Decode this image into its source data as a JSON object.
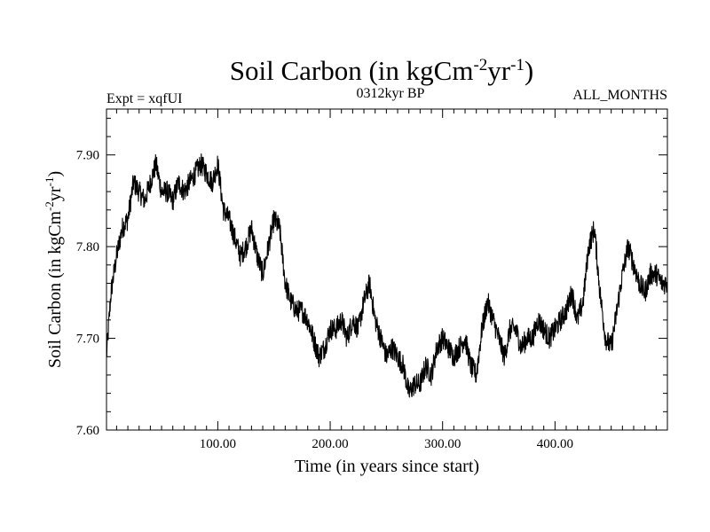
{
  "chart_data": {
    "type": "line",
    "title": "Soil Carbon (in kgCm",
    "title_sup1": "-2",
    "title_mid": "yr",
    "title_sup2": "-1",
    "title_end": ")",
    "expt_label": "Expt = xqfUI",
    "period_label": "0312kyr BP",
    "months_label": "ALL_MONTHS",
    "xlabel": "Time (in years since start)",
    "ylabel": "Soil Carbon (in kgCm",
    "ylabel_sup1": "-2",
    "ylabel_mid": "yr",
    "ylabel_sup2": "-1",
    "ylabel_end": ")",
    "xlim": [
      1,
      500
    ],
    "ylim": [
      7.6,
      7.95
    ],
    "xticks": [
      100,
      200,
      300,
      400
    ],
    "xtick_labels": [
      "100.00",
      "200.00",
      "300.00",
      "400.00"
    ],
    "yticks": [
      7.6,
      7.7,
      7.8,
      7.9
    ],
    "ytick_labels": [
      "7.60",
      "7.70",
      "7.80",
      "7.90"
    ],
    "noise_amplitude": 0.012,
    "series": [
      {
        "name": "Soil Carbon",
        "color": "#000000",
        "x": [
          1,
          5,
          10,
          15,
          20,
          25,
          30,
          35,
          40,
          45,
          50,
          55,
          60,
          65,
          70,
          75,
          80,
          85,
          90,
          95,
          100,
          105,
          110,
          115,
          120,
          125,
          130,
          135,
          140,
          145,
          150,
          155,
          160,
          165,
          170,
          175,
          180,
          185,
          190,
          195,
          200,
          205,
          210,
          215,
          220,
          225,
          230,
          235,
          240,
          245,
          250,
          255,
          260,
          265,
          270,
          275,
          280,
          285,
          290,
          295,
          300,
          305,
          310,
          315,
          320,
          325,
          330,
          335,
          340,
          345,
          350,
          355,
          360,
          365,
          370,
          375,
          380,
          385,
          390,
          395,
          400,
          405,
          410,
          415,
          420,
          425,
          430,
          435,
          440,
          445,
          450,
          455,
          460,
          465,
          470,
          475,
          480,
          485,
          490,
          495,
          500
        ],
        "values": [
          7.68,
          7.75,
          7.79,
          7.82,
          7.83,
          7.87,
          7.86,
          7.85,
          7.87,
          7.89,
          7.86,
          7.86,
          7.85,
          7.87,
          7.86,
          7.87,
          7.88,
          7.89,
          7.88,
          7.87,
          7.89,
          7.84,
          7.83,
          7.81,
          7.79,
          7.8,
          7.82,
          7.79,
          7.77,
          7.8,
          7.83,
          7.82,
          7.76,
          7.74,
          7.73,
          7.73,
          7.72,
          7.7,
          7.68,
          7.69,
          7.71,
          7.71,
          7.72,
          7.7,
          7.72,
          7.71,
          7.74,
          7.76,
          7.72,
          7.7,
          7.68,
          7.69,
          7.68,
          7.67,
          7.64,
          7.65,
          7.65,
          7.67,
          7.66,
          7.69,
          7.7,
          7.69,
          7.68,
          7.69,
          7.7,
          7.67,
          7.66,
          7.71,
          7.74,
          7.72,
          7.7,
          7.68,
          7.71,
          7.71,
          7.69,
          7.7,
          7.7,
          7.72,
          7.71,
          7.7,
          7.71,
          7.72,
          7.73,
          7.75,
          7.72,
          7.74,
          7.8,
          7.82,
          7.75,
          7.7,
          7.69,
          7.73,
          7.77,
          7.8,
          7.78,
          7.76,
          7.75,
          7.77,
          7.77,
          7.76,
          7.76
        ]
      }
    ]
  }
}
